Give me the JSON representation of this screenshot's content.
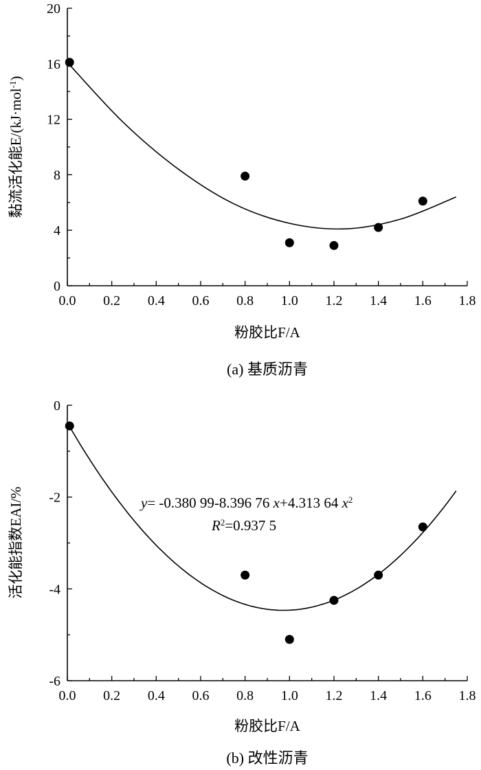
{
  "chart_data": [
    {
      "type": "scatter",
      "panel": "a",
      "caption": "(a) 基质沥青",
      "xlabel": "粉胶比F/A",
      "ylabel": "黏流活化能E/(kJ·mol",
      "ylabel_sup": "-1",
      "ylabel_tail": ")",
      "xlim": [
        0,
        1.8
      ],
      "ylim": [
        0,
        20
      ],
      "xticks": [
        "0.0",
        "0.2",
        "0.4",
        "0.6",
        "0.8",
        "1.0",
        "1.2",
        "1.4",
        "1.6",
        "1.8"
      ],
      "yticks": [
        "0",
        "4",
        "8",
        "12",
        "16",
        "20"
      ],
      "points": {
        "x": [
          0.0,
          0.8,
          1.0,
          1.2,
          1.4,
          1.6
        ],
        "y": [
          16.1,
          7.9,
          3.1,
          2.9,
          4.2,
          6.1
        ]
      },
      "fit_curve": {
        "x": [
          0.0,
          0.25,
          0.5,
          0.75,
          1.0,
          1.25,
          1.5,
          1.75
        ],
        "y": [
          16.1,
          11.8,
          8.4,
          5.9,
          4.5,
          4.1,
          4.8,
          6.4
        ]
      }
    },
    {
      "type": "scatter",
      "panel": "b",
      "caption": "(b) 改性沥青",
      "xlabel": "粉胶比F/A",
      "ylabel": "活化能指数EAI/%",
      "xlim": [
        0,
        1.8
      ],
      "ylim": [
        -6,
        0
      ],
      "xticks": [
        "0.0",
        "0.2",
        "0.4",
        "0.6",
        "0.8",
        "1.0",
        "1.2",
        "1.4",
        "1.6",
        "1.8"
      ],
      "yticks": [
        "0",
        "-2",
        "-4",
        "-6"
      ],
      "points": {
        "x": [
          0.0,
          0.8,
          1.0,
          1.2,
          1.4,
          1.6
        ],
        "y": [
          -0.45,
          -3.7,
          -5.1,
          -4.25,
          -3.7,
          -2.65
        ]
      },
      "fit_equation": {
        "a": "y",
        "b": "= -0.380 99-8.396 76 ",
        "c": "x",
        "d": "+4.313 64 ",
        "e": "x",
        "sup": "2"
      },
      "r2_text": {
        "a": "R",
        "sup": "2",
        "b": "=0.937 5"
      },
      "fit_coefficients": [
        -0.38099,
        -8.39676,
        4.31364
      ]
    }
  ]
}
